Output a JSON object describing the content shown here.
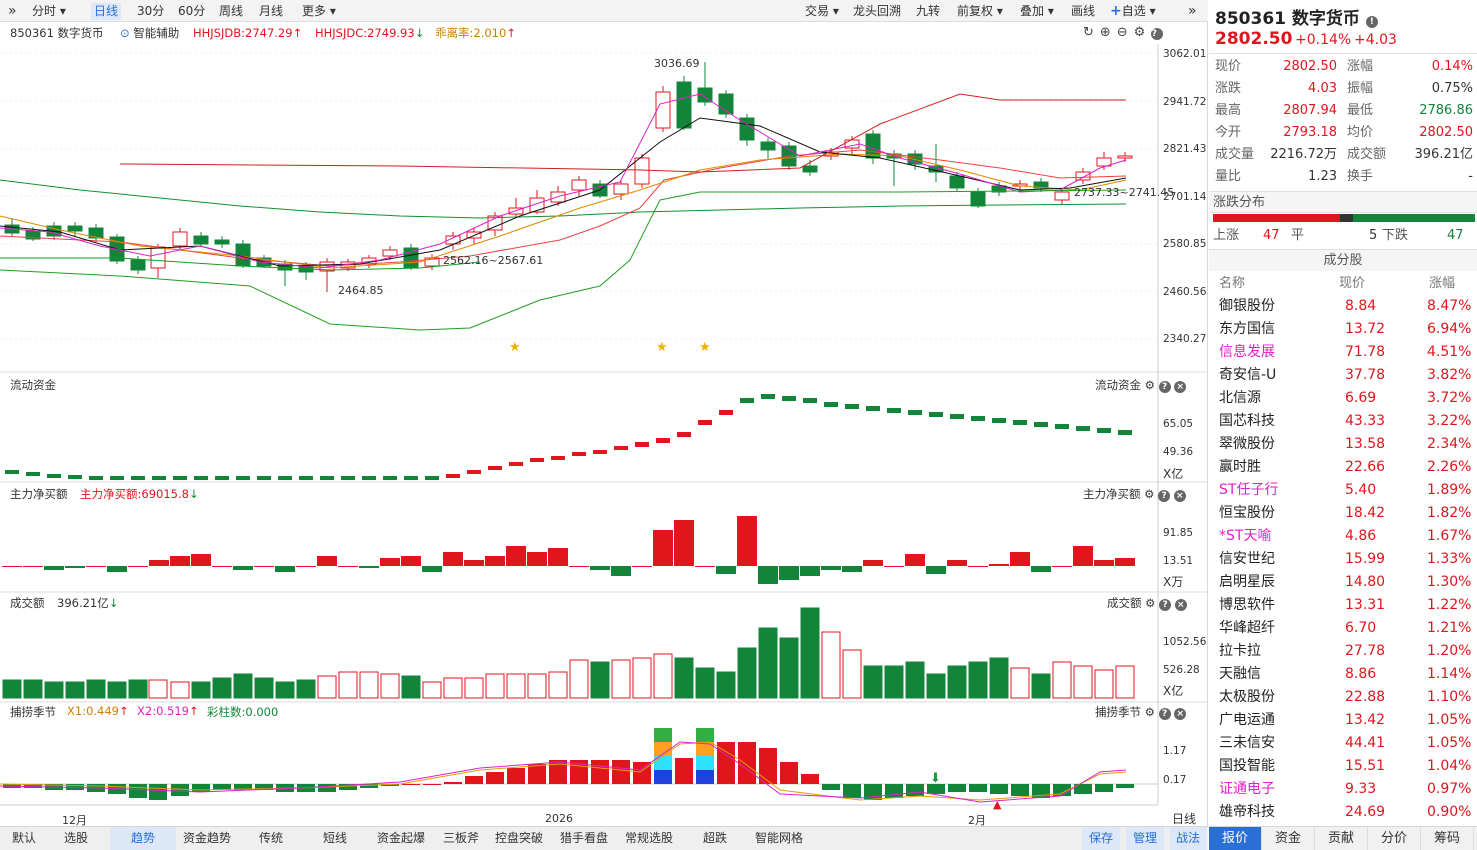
{
  "toolbar": {
    "nav_glyph": "»",
    "periods": [
      "分时",
      "日线",
      "30分",
      "60分",
      "周线",
      "月线",
      "更多"
    ],
    "active": "日线",
    "right": [
      "交易",
      "龙头回溯",
      "九转",
      "前复权",
      "叠加",
      "画线",
      "自选"
    ],
    "collapse_glyph": "»"
  },
  "chart_info": {
    "code_name": "850361 数字货币",
    "assist": "智能辅助",
    "hhjsjdb": "HHJSJDB:2747.29",
    "hhjsjdc": "HHJSJDC:2749.93",
    "deviation": "乖离率:2.010"
  },
  "price_axis": [
    "3062.01",
    "2941.72",
    "2821.43",
    "2701.14",
    "2580.85",
    "2460.56",
    "2340.27"
  ],
  "annotations": {
    "high": "3036.69",
    "low": "2464.85",
    "range1": "2562.16~2567.61",
    "range2": "2737.33~2741.45"
  },
  "panels": {
    "flow": {
      "title": "流动资金",
      "right_title": "流动资金",
      "axis": [
        "65.05",
        "49.36",
        "X亿"
      ]
    },
    "net": {
      "title": "主力净买额",
      "value_label": "主力净买额:69015.8",
      "right_title": "主力净买额",
      "axis": [
        "91.85",
        "13.51",
        "X万"
      ]
    },
    "turnover": {
      "title": "成交额",
      "value_label": "396.21亿",
      "right_title": "成交额",
      "axis": [
        "1052.56",
        "526.28",
        "X亿"
      ]
    },
    "season": {
      "title": "捕捞季节",
      "x1": "X1:0.449",
      "x2": "X2:0.519",
      "bars": "彩柱数:0.000",
      "right_title": "捕捞季节",
      "axis": [
        "1.17",
        "0.17"
      ]
    }
  },
  "xaxis": {
    "labels": [
      "12月",
      "2026",
      "2月"
    ],
    "right": "日线"
  },
  "bottom_tabs": [
    "默认",
    "选股",
    "趋势",
    "资金趋势",
    "传统",
    "短线",
    "资金起爆",
    "三板斧",
    "控盘突破",
    "猎手看盘",
    "常规选股",
    "超跌",
    "智能网格"
  ],
  "bottom_active": "趋势",
  "bottom_right": [
    "保存",
    "管理",
    "战法"
  ],
  "quote": {
    "title": "850361 数字货币",
    "price": "2802.50",
    "pct": "+0.14%",
    "chg": "+4.03",
    "rows": [
      [
        "现价",
        "2802.50",
        "涨幅",
        "0.14%"
      ],
      [
        "涨跌",
        "4.03",
        "振幅",
        "0.75%"
      ],
      [
        "最高",
        "2807.94",
        "最低",
        "2786.86"
      ],
      [
        "今开",
        "2793.18",
        "均价",
        "2802.50"
      ],
      [
        "成交量",
        "2216.72万",
        "成交额",
        "396.21亿"
      ],
      [
        "量比",
        "1.23",
        "换手",
        "-"
      ]
    ]
  },
  "distribution": {
    "title": "涨跌分布",
    "up_label": "上涨",
    "up": "47",
    "flat_label": "平",
    "flat": "5",
    "down_label": "下跌",
    "down": "47"
  },
  "constituents": {
    "title": "成分股",
    "headers": [
      "名称",
      "现价",
      "涨幅"
    ],
    "rows": [
      [
        "御银股份",
        "8.84",
        "8.47%"
      ],
      [
        "东方国信",
        "13.72",
        "6.94%"
      ],
      [
        "信息发展",
        "71.78",
        "4.51%"
      ],
      [
        "奇安信-U",
        "37.78",
        "3.82%"
      ],
      [
        "北信源",
        "6.69",
        "3.72%"
      ],
      [
        "国芯科技",
        "43.33",
        "3.22%"
      ],
      [
        "翠微股份",
        "13.58",
        "2.34%"
      ],
      [
        "赢时胜",
        "22.66",
        "2.26%"
      ],
      [
        "ST任子行",
        "5.40",
        "1.89%"
      ],
      [
        "恒宝股份",
        "18.42",
        "1.82%"
      ],
      [
        "*ST天喻",
        "4.86",
        "1.67%"
      ],
      [
        "信安世纪",
        "15.99",
        "1.33%"
      ],
      [
        "启明星辰",
        "14.80",
        "1.30%"
      ],
      [
        "博思软件",
        "13.31",
        "1.22%"
      ],
      [
        "华峰超纤",
        "6.70",
        "1.21%"
      ],
      [
        "拉卡拉",
        "27.78",
        "1.20%"
      ],
      [
        "天融信",
        "8.86",
        "1.14%"
      ],
      [
        "太极股份",
        "22.88",
        "1.10%"
      ],
      [
        "广电运通",
        "13.42",
        "1.05%"
      ],
      [
        "三未信安",
        "44.41",
        "1.05%"
      ],
      [
        "国投智能",
        "15.51",
        "1.04%"
      ],
      [
        "证通电子",
        "9.33",
        "0.97%"
      ],
      [
        "雄帝科技",
        "24.69",
        "0.90%"
      ]
    ],
    "highlight_names": [
      "信息发展",
      "ST任子行",
      "*ST天喻",
      "证通电子"
    ]
  },
  "right_tabs": [
    "报价",
    "资金",
    "贡献",
    "分价",
    "筹码"
  ],
  "right_active": "报价",
  "colors": {
    "up": "#e0161c",
    "down": "#13853b",
    "ma5": "#e020c8",
    "ma10": "#111111",
    "ma20": "#e08a00",
    "ma60": "#f04040",
    "band_up": "#d01010",
    "band_down": "#10a020"
  }
}
